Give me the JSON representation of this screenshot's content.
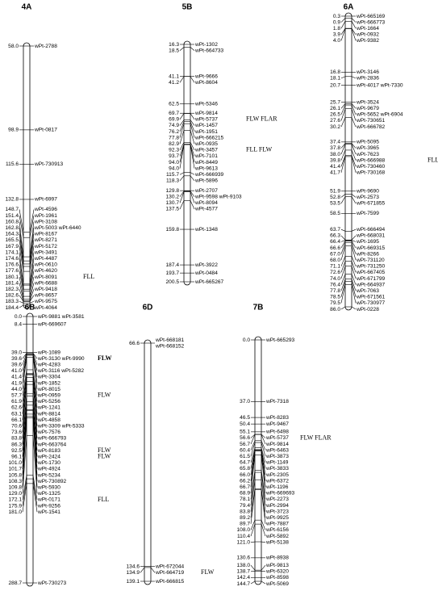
{
  "chromosomes": [
    {
      "name": "4A",
      "loci": [
        {
          "pos": "58.0",
          "markers": [
            "wPt-2788"
          ]
        },
        {
          "pos": "98.9",
          "markers": [
            "wPt-0817"
          ]
        },
        {
          "pos": "115.6",
          "markers": [
            "wPt-730913"
          ]
        },
        {
          "pos": "132.8",
          "markers": [
            "wPt-6997"
          ]
        },
        {
          "pos": "148.7",
          "markers": [
            "wPt-4596"
          ]
        },
        {
          "pos": "151.4",
          "markers": [
            "wPt-1961"
          ]
        },
        {
          "pos": "160.8",
          "markers": [
            "wPt-3108"
          ]
        },
        {
          "pos": "162.8",
          "markers": [
            "wPt-5003 wPt-6440"
          ]
        },
        {
          "pos": "164.3",
          "markers": [
            "wPt-8167"
          ]
        },
        {
          "pos": "165.5",
          "markers": [
            "wPt-8271"
          ]
        },
        {
          "pos": "167.9",
          "markers": [
            "wPt-5172"
          ]
        },
        {
          "pos": "174.1",
          "markers": [
            "wPt-3491"
          ]
        },
        {
          "pos": "174.6",
          "markers": [
            "wPt-4487"
          ]
        },
        {
          "pos": "176.6",
          "markers": [
            "wPt-0610"
          ]
        },
        {
          "pos": "177.6",
          "markers": [
            "wPt-4620"
          ]
        },
        {
          "pos": "180.1",
          "markers": [
            "wPt-8091"
          ],
          "qtl": "FLL"
        },
        {
          "pos": "181.4",
          "markers": [
            "wPt-6688"
          ]
        },
        {
          "pos": "182.3",
          "markers": [
            "wPt-9418"
          ]
        },
        {
          "pos": "182.6",
          "markers": [
            "wPt-8657"
          ]
        },
        {
          "pos": "183.3",
          "markers": [
            "wPt-9575"
          ]
        },
        {
          "pos": "184.4",
          "markers": [
            "wPt-4064"
          ]
        }
      ]
    },
    {
      "name": "5B",
      "loci": [
        {
          "pos": "16.3",
          "markers": [
            "wPt-1302"
          ]
        },
        {
          "pos": "18.5",
          "markers": [
            "wPt-664733"
          ]
        },
        {
          "pos": "41.1",
          "markers": [
            "wPt-9666"
          ]
        },
        {
          "pos": "41.2",
          "markers": [
            "wPt-8604"
          ]
        },
        {
          "pos": "62.5",
          "markers": [
            "wPt-5346"
          ]
        },
        {
          "pos": "69.7",
          "markers": [
            "wPt-9814"
          ]
        },
        {
          "pos": "69.9",
          "markers": [
            "wPt-5737"
          ],
          "qtl": "FLW FLAR"
        },
        {
          "pos": "74.9",
          "markers": [
            "wPt-1457"
          ]
        },
        {
          "pos": "76.2",
          "markers": [
            "wPt-1951"
          ]
        },
        {
          "pos": "77.8",
          "markers": [
            "wPt-666215"
          ]
        },
        {
          "pos": "82.9",
          "markers": [
            "wPt-0935"
          ]
        },
        {
          "pos": "92.3",
          "markers": [
            "wPt-3457"
          ],
          "qtl": "FLL FLW"
        },
        {
          "pos": "93.7",
          "markers": [
            "wPt-7101"
          ]
        },
        {
          "pos": "94.0",
          "markers": [
            "wPt-8449"
          ]
        },
        {
          "pos": "94.0",
          "markers": [
            "wPt-9613"
          ]
        },
        {
          "pos": "115.7",
          "markers": [
            "wPt-666939"
          ]
        },
        {
          "pos": "118.3",
          "markers": [
            "wPt-5896"
          ]
        },
        {
          "pos": "129.8",
          "markers": [
            "wPt-2707"
          ]
        },
        {
          "pos": "130.2",
          "markers": [
            "wPt-9598 wPt-9103"
          ]
        },
        {
          "pos": "130.7",
          "markers": [
            "wPt-8094"
          ]
        },
        {
          "pos": "137.5",
          "markers": [
            "wPt-4577"
          ]
        },
        {
          "pos": "159.8",
          "markers": [
            "wPt-1348"
          ]
        },
        {
          "pos": "187.4",
          "markers": [
            "wPt-3922"
          ]
        },
        {
          "pos": "193.7",
          "markers": [
            "wPt-0484"
          ]
        },
        {
          "pos": "200.5",
          "markers": [
            "wPt-665267"
          ]
        }
      ]
    },
    {
      "name": "6A",
      "loci": [
        {
          "pos": "0.3",
          "markers": [
            "wPt-665169"
          ]
        },
        {
          "pos": "0.9",
          "markers": [
            "wPt-666773"
          ]
        },
        {
          "pos": "1.8",
          "markers": [
            "wPt-1664"
          ]
        },
        {
          "pos": "3.9",
          "markers": [
            "wPt-0932"
          ]
        },
        {
          "pos": "4.0",
          "markers": [
            "wPt-9382"
          ]
        },
        {
          "pos": "16.8",
          "markers": [
            "wPt-3146"
          ]
        },
        {
          "pos": "18.1",
          "markers": [
            "wPt-2836"
          ]
        },
        {
          "pos": "20.7",
          "markers": [
            "wPt-4017 wPt-7330"
          ]
        },
        {
          "pos": "25.7",
          "markers": [
            "wPt-3524"
          ]
        },
        {
          "pos": "26.1",
          "markers": [
            "wPt-9679"
          ]
        },
        {
          "pos": "26.5",
          "markers": [
            "wPt-5652 wPt-6904"
          ]
        },
        {
          "pos": "27.6",
          "markers": [
            "wPt-730651"
          ]
        },
        {
          "pos": "30.2",
          "markers": [
            "wPt-666782"
          ]
        },
        {
          "pos": "37.4",
          "markers": [
            "wPt-5095"
          ]
        },
        {
          "pos": "37.8",
          "markers": [
            "wPt-3965"
          ]
        },
        {
          "pos": "38.0",
          "markers": [
            "wPt-7623"
          ]
        },
        {
          "pos": "39.8",
          "markers": [
            "wPt-666988"
          ],
          "qtl": "FLL"
        },
        {
          "pos": "41.4",
          "markers": [
            "wPt-730460"
          ]
        },
        {
          "pos": "41.7",
          "markers": [
            "wPt-730168"
          ]
        },
        {
          "pos": "51.9",
          "markers": [
            "wPt-9690"
          ]
        },
        {
          "pos": "52.8",
          "markers": [
            "wPt-2573"
          ]
        },
        {
          "pos": "53.5",
          "markers": [
            "wPt-671855"
          ]
        },
        {
          "pos": "58.5",
          "markers": [
            "wPt-7599"
          ]
        },
        {
          "pos": "63.7",
          "markers": [
            "wPt-666494"
          ]
        },
        {
          "pos": "66.3",
          "markers": [
            "wPt-668031"
          ]
        },
        {
          "pos": "66.4",
          "markers": [
            "wPt-1695"
          ]
        },
        {
          "pos": "66.6",
          "markers": [
            "wPt-669315"
          ]
        },
        {
          "pos": "67.0",
          "markers": [
            "wPt-8266"
          ]
        },
        {
          "pos": "68.0",
          "markers": [
            "wPt-731120"
          ]
        },
        {
          "pos": "71.1",
          "markers": [
            "wPt-731250"
          ]
        },
        {
          "pos": "72.6",
          "markers": [
            "wPt-667405"
          ]
        },
        {
          "pos": "74.0",
          "markers": [
            "wPt-671799"
          ]
        },
        {
          "pos": "76.4",
          "markers": [
            "wPt-664937"
          ]
        },
        {
          "pos": "77.8",
          "markers": [
            "wPt-7063"
          ]
        },
        {
          "pos": "78.5",
          "markers": [
            "wPt-671561"
          ]
        },
        {
          "pos": "79.5",
          "markers": [
            "wPt-730977"
          ]
        },
        {
          "pos": "86.0",
          "markers": [
            "wPt-0228"
          ]
        }
      ]
    },
    {
      "name": "6B",
      "loci": [
        {
          "pos": "0.0",
          "markers": [
            "wPt-9881 wPt-3581"
          ]
        },
        {
          "pos": "8.4",
          "markers": [
            "wPt-669607"
          ]
        },
        {
          "pos": "39.0",
          "markers": [
            "wPt-1089"
          ]
        },
        {
          "pos": "39.6",
          "markers": [
            "wPt-3130 wPt-9990"
          ],
          "qtl": "FLW",
          "qtl_bold": true
        },
        {
          "pos": "39.6",
          "markers": [
            "wPt-4283"
          ]
        },
        {
          "pos": "41.0",
          "markers": [
            "wPt-3116 wPt-5282"
          ]
        },
        {
          "pos": "41.4",
          "markers": [
            "wPt-3304"
          ]
        },
        {
          "pos": "41.9",
          "markers": [
            "wPt-1852"
          ]
        },
        {
          "pos": "44.0",
          "markers": [
            "wPt-8015"
          ]
        },
        {
          "pos": "57.7",
          "markers": [
            "wPt-0959"
          ],
          "qtl": "FLW"
        },
        {
          "pos": "61.9",
          "markers": [
            "wPt-5256"
          ]
        },
        {
          "pos": "62.6",
          "markers": [
            "wPt-1241"
          ]
        },
        {
          "pos": "63.1",
          "markers": [
            "wPt-8814"
          ]
        },
        {
          "pos": "66.1",
          "markers": [
            "wPt-4858"
          ]
        },
        {
          "pos": "70.6",
          "markers": [
            "wPt-3309 wPt-5333"
          ]
        },
        {
          "pos": "73.6",
          "markers": [
            "wPt-7576"
          ]
        },
        {
          "pos": "83.8",
          "markers": [
            "wPt-666793"
          ]
        },
        {
          "pos": "86.3",
          "markers": [
            "wPt-663764"
          ]
        },
        {
          "pos": "92.5",
          "markers": [
            "wPt-8183"
          ],
          "qtl": "FLW"
        },
        {
          "pos": "96.1",
          "markers": [
            "wPt-2424"
          ],
          "qtl": "FLW"
        },
        {
          "pos": "101.0",
          "markers": [
            "wPt-1730"
          ]
        },
        {
          "pos": "101.7",
          "markers": [
            "wPt-4924"
          ]
        },
        {
          "pos": "105.8",
          "markers": [
            "wPt-5234"
          ]
        },
        {
          "pos": "108.3",
          "markers": [
            "wPt-730892"
          ]
        },
        {
          "pos": "109.8",
          "markers": [
            "wPt-5930"
          ]
        },
        {
          "pos": "129.0",
          "markers": [
            "wPt-1325"
          ]
        },
        {
          "pos": "172.1",
          "markers": [
            "wPt-0171"
          ],
          "qtl": "FLL"
        },
        {
          "pos": "175.9",
          "markers": [
            "wPt-9256"
          ]
        },
        {
          "pos": "181.0",
          "markers": [
            "wPt-1541"
          ]
        },
        {
          "pos": "288.7",
          "markers": [
            "wPt-730273"
          ]
        }
      ]
    },
    {
      "name": "6D",
      "loci": [
        {
          "pos": "66.6",
          "markers": [
            "wPt-668181",
            "wPt-668152"
          ]
        },
        {
          "pos": "134.6",
          "markers": [
            "wPt-672044"
          ]
        },
        {
          "pos": "134.9",
          "markers": [
            "wPt-664719"
          ],
          "qtl": "FLW"
        },
        {
          "pos": "139.1",
          "markers": [
            "wPt-666815"
          ]
        }
      ]
    },
    {
      "name": "7B",
      "loci": [
        {
          "pos": "0.0",
          "markers": [
            "wPt-665293"
          ]
        },
        {
          "pos": "37.0",
          "markers": [
            "wPt-7318"
          ]
        },
        {
          "pos": "46.5",
          "markers": [
            "wPt-8283"
          ]
        },
        {
          "pos": "50.4",
          "markers": [
            "wPt-9467"
          ]
        },
        {
          "pos": "55.1",
          "markers": [
            "wPt-6498"
          ]
        },
        {
          "pos": "56.6",
          "markers": [
            "wPt-5737"
          ],
          "qtl": "FLW FLAR"
        },
        {
          "pos": "56.7",
          "markers": [
            "wPt-9814"
          ]
        },
        {
          "pos": "60.4",
          "markers": [
            "wPt-6463"
          ]
        },
        {
          "pos": "61.5",
          "markers": [
            "wPt-3873"
          ]
        },
        {
          "pos": "64.7",
          "markers": [
            "wPt-1149"
          ]
        },
        {
          "pos": "65.8",
          "markers": [
            "wPt-3833"
          ]
        },
        {
          "pos": "66.0",
          "markers": [
            "wPt-2305"
          ]
        },
        {
          "pos": "66.2",
          "markers": [
            "wPt-6372"
          ]
        },
        {
          "pos": "66.7",
          "markers": [
            "wPt-1196"
          ]
        },
        {
          "pos": "68.9",
          "markers": [
            "wPt-669693"
          ]
        },
        {
          "pos": "78.1",
          "markers": [
            "wPt-2273"
          ]
        },
        {
          "pos": "79.4",
          "markers": [
            "wPt-2994"
          ]
        },
        {
          "pos": "83.8",
          "markers": [
            "wPt-3723"
          ]
        },
        {
          "pos": "89.2",
          "markers": [
            "wPt-9925"
          ]
        },
        {
          "pos": "89.7",
          "markers": [
            "wPt-7887"
          ]
        },
        {
          "pos": "108.0",
          "markers": [
            "wPt-6156"
          ]
        },
        {
          "pos": "110.4",
          "markers": [
            "wPt-5892"
          ]
        },
        {
          "pos": "121.0",
          "markers": [
            "wPt-5138"
          ]
        },
        {
          "pos": "130.6",
          "markers": [
            "wPt-8938"
          ]
        },
        {
          "pos": "138.0",
          "markers": [
            "wPt-9813"
          ]
        },
        {
          "pos": "138.7",
          "markers": [
            "wPt-6320"
          ]
        },
        {
          "pos": "142.4",
          "markers": [
            "wPt-8598"
          ]
        },
        {
          "pos": "144.7",
          "markers": [
            "wPt-5069"
          ]
        }
      ]
    }
  ]
}
